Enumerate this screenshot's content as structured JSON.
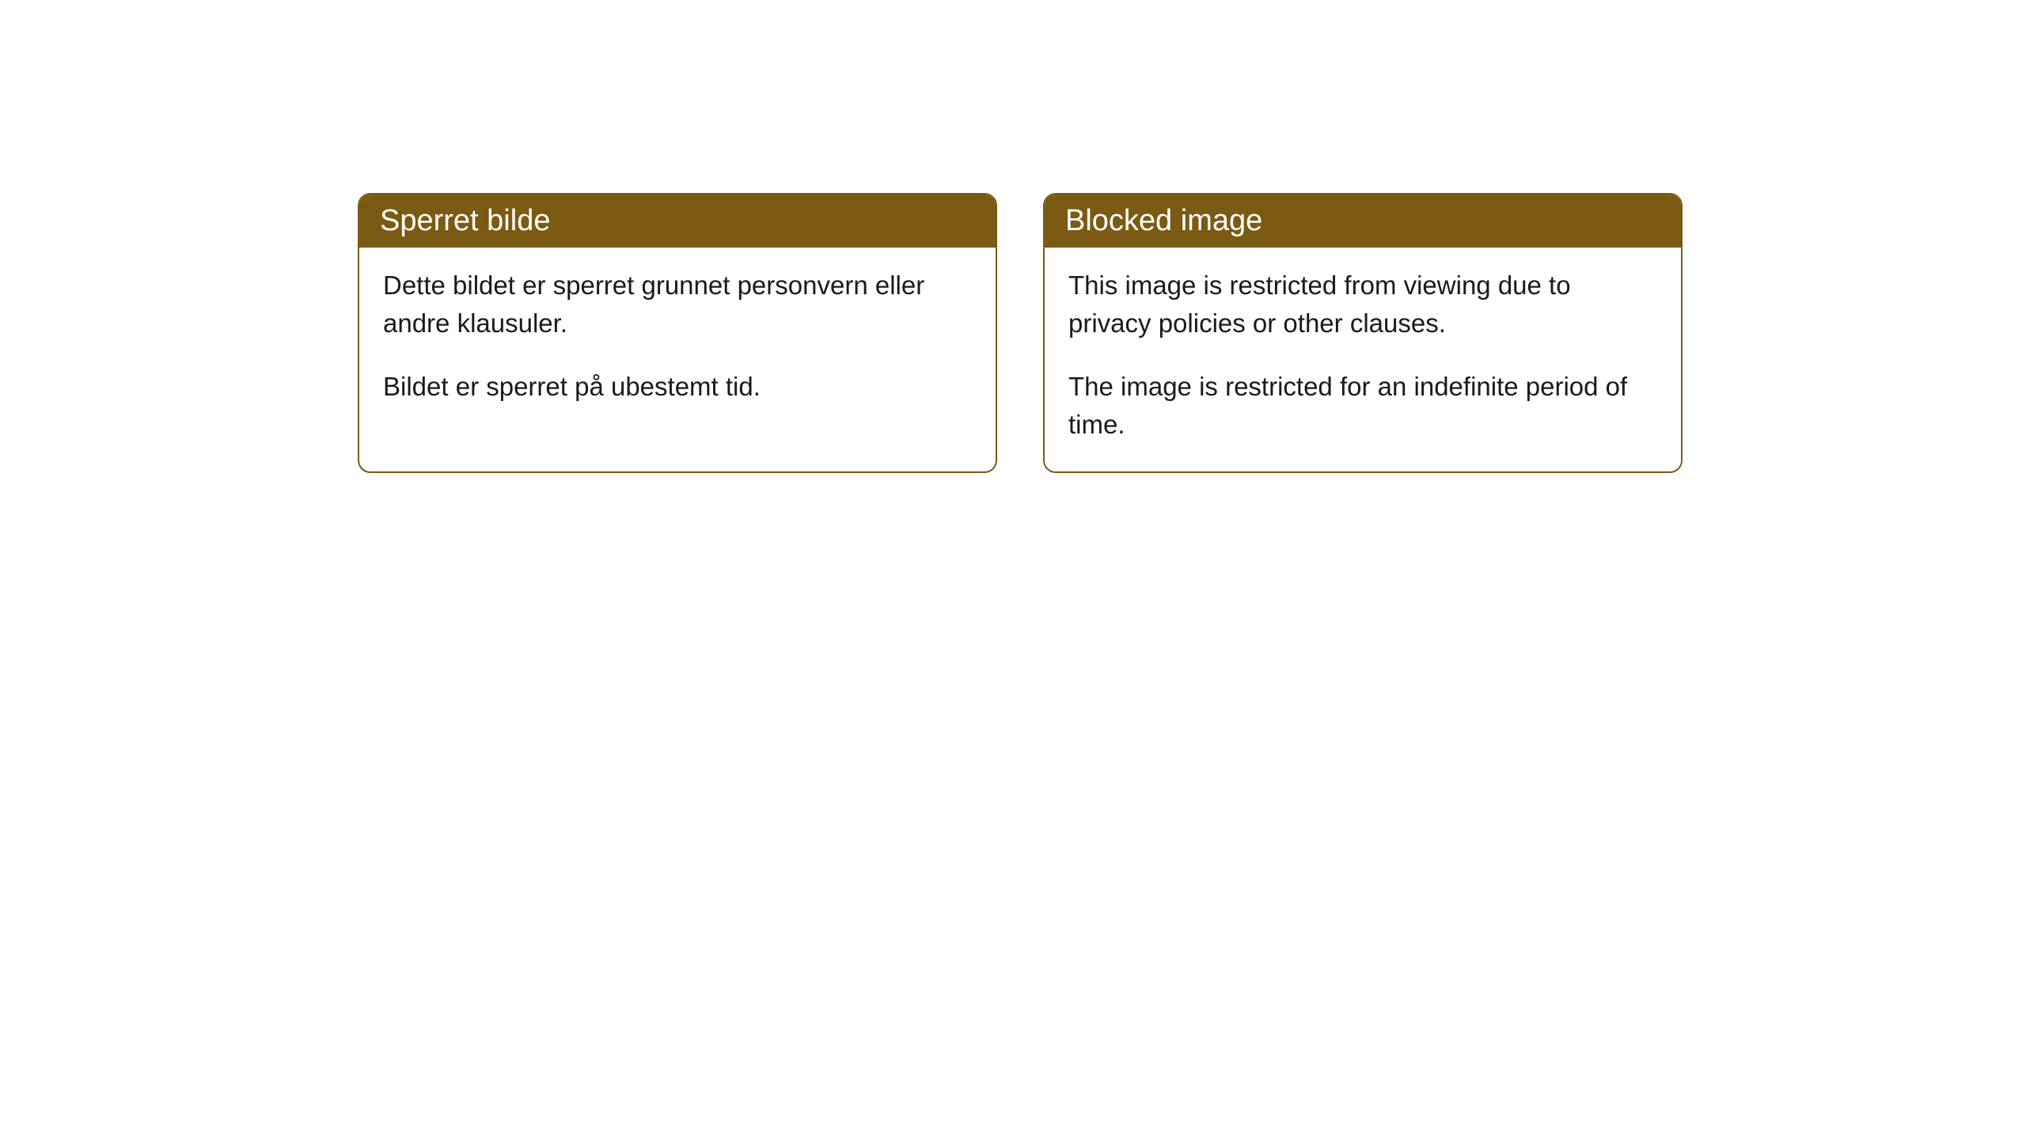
{
  "cards": [
    {
      "title": "Sperret bilde",
      "paragraph1": "Dette bildet er sperret grunnet personvern eller andre klausuler.",
      "paragraph2": "Bildet er sperret på ubestemt tid."
    },
    {
      "title": "Blocked image",
      "paragraph1": "This image is restricted from viewing due to privacy policies or other clauses.",
      "paragraph2": "The image is restricted for an indefinite period of time."
    }
  ],
  "styling": {
    "header_background_color": "#7b5a13",
    "header_text_color": "#ffffff",
    "border_color": "#7b5a13",
    "body_background_color": "#ffffff",
    "body_text_color": "#1a1a1a",
    "border_radius": "16px",
    "header_fontsize": 38,
    "body_fontsize": 33
  }
}
